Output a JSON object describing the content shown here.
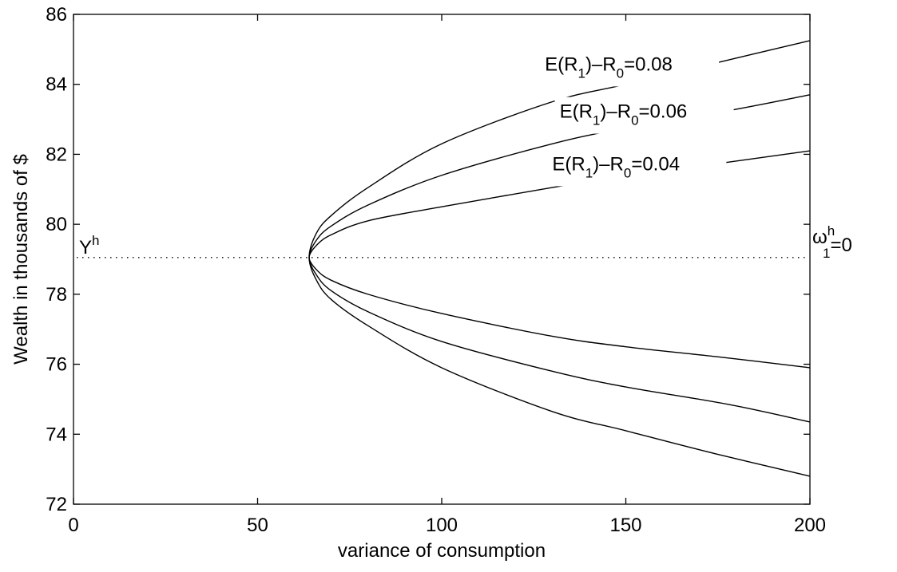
{
  "chart_data": {
    "type": "line",
    "xlabel": "variance of consumption",
    "ylabel": "Wealth in thousands of $",
    "xlim": [
      0,
      200
    ],
    "ylim": [
      72,
      86
    ],
    "xticks": [
      "0",
      "50",
      "100",
      "150",
      "200"
    ],
    "yticks": [
      "72",
      "74",
      "76",
      "78",
      "80",
      "82",
      "84",
      "86"
    ],
    "grid": false,
    "vertex": {
      "x": 64,
      "y": 79.05
    },
    "baseline": {
      "y": 79.05,
      "style": "dotted",
      "left_label": {
        "main": "Y",
        "sup": "h"
      },
      "right_label": {
        "main": "ω",
        "sup": "h",
        "sub": "1",
        "tail": "=0"
      }
    },
    "series": [
      {
        "curve_label": {
          "pre": "E(R",
          "sub1": "1",
          "mid": ")–R",
          "sub2": "0",
          "post": "=0.04"
        },
        "upper": {
          "x": [
            64,
            66,
            70,
            80,
            100,
            130,
            150,
            176,
            200
          ],
          "y": [
            79.05,
            79.4,
            79.7,
            80.1,
            80.5,
            81.05,
            81.4,
            81.75,
            82.1
          ]
        },
        "lower": {
          "x": [
            64,
            66,
            70,
            80,
            100,
            130,
            150,
            176,
            200
          ],
          "y": [
            79.05,
            78.7,
            78.4,
            78.0,
            77.45,
            76.8,
            76.5,
            76.2,
            75.9
          ]
        }
      },
      {
        "curve_label": {
          "pre": "E(R",
          "sub1": "1",
          "mid": ")–R",
          "sub2": "0",
          "post": "=0.06"
        },
        "upper": {
          "x": [
            64,
            66,
            70,
            80,
            100,
            130,
            150,
            178,
            200
          ],
          "y": [
            79.05,
            79.55,
            79.95,
            80.55,
            81.4,
            82.3,
            82.75,
            83.25,
            83.7
          ]
        },
        "lower": {
          "x": [
            64,
            66,
            70,
            80,
            100,
            130,
            150,
            178,
            200
          ],
          "y": [
            79.05,
            78.55,
            78.1,
            77.5,
            76.65,
            75.8,
            75.35,
            74.85,
            74.35
          ]
        }
      },
      {
        "curve_label": {
          "pre": "E(R",
          "sub1": "1",
          "mid": ")–R",
          "sub2": "0",
          "post": "=0.08"
        },
        "upper": {
          "x": [
            64,
            66,
            70,
            80,
            100,
            130,
            150,
            174,
            200
          ],
          "y": [
            79.05,
            79.75,
            80.25,
            81.05,
            82.3,
            83.5,
            84.0,
            84.6,
            85.25
          ]
        },
        "lower": {
          "x": [
            64,
            66,
            70,
            80,
            100,
            130,
            150,
            174,
            200
          ],
          "y": [
            79.05,
            78.4,
            77.85,
            77.1,
            75.9,
            74.65,
            74.1,
            73.45,
            72.8
          ]
        }
      }
    ]
  }
}
